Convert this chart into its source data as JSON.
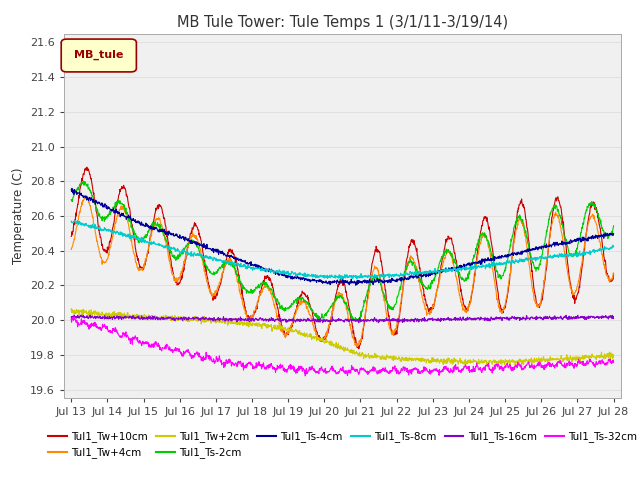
{
  "title": "MB Tule Tower: Tule Temps 1 (3/1/11-3/19/14)",
  "ylabel": "Temperature (C)",
  "ylim": [
    19.55,
    21.65
  ],
  "yticks": [
    19.6,
    19.8,
    20.0,
    20.2,
    20.4,
    20.6,
    20.8,
    21.0,
    21.2,
    21.4,
    21.6
  ],
  "xtick_labels": [
    "Jul 13",
    "Jul 14",
    "Jul 15",
    "Jul 16",
    "Jul 17",
    "Jul 18",
    "Jul 19",
    "Jul 20",
    "Jul 21",
    "Jul 22",
    "Jul 23",
    "Jul 24",
    "Jul 25",
    "Jul 26",
    "Jul 27",
    "Jul 28"
  ],
  "series": [
    {
      "label": "Tul1_Tw+10cm",
      "color": "#cc0000"
    },
    {
      "label": "Tul1_Tw+4cm",
      "color": "#ff8800"
    },
    {
      "label": "Tul1_Tw+2cm",
      "color": "#cccc00"
    },
    {
      "label": "Tul1_Ts-2cm",
      "color": "#00cc00"
    },
    {
      "label": "Tul1_Ts-4cm",
      "color": "#000099"
    },
    {
      "label": "Tul1_Ts-8cm",
      "color": "#00cccc"
    },
    {
      "label": "Tul1_Ts-16cm",
      "color": "#8800cc"
    },
    {
      "label": "Tul1_Ts-32cm",
      "color": "#ff00ff"
    }
  ],
  "bg_color": "#ffffff",
  "grid_color": "#dddddd"
}
